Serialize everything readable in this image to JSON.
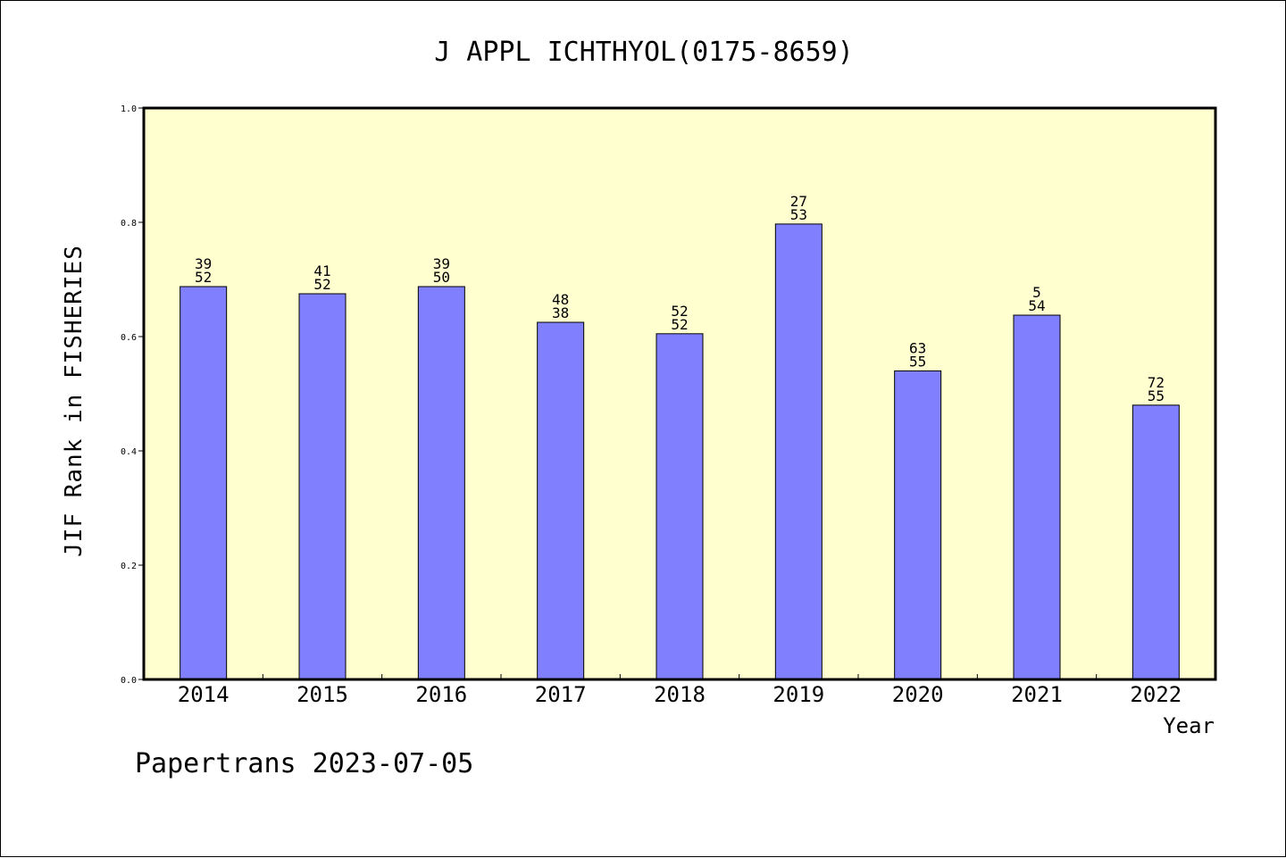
{
  "chart_data": {
    "type": "bar",
    "title": "J APPL ICHTHYOL(0175-8659)",
    "xlabel": "Year",
    "ylabel": "JIF Rank in FISHERIES",
    "ylim": [
      0,
      1.0
    ],
    "yticks": [
      "0.0",
      "0.2",
      "0.4",
      "0.6",
      "0.8",
      "1.0"
    ],
    "categories": [
      "2014",
      "2015",
      "2016",
      "2017",
      "2018",
      "2019",
      "2020",
      "2021",
      "2022"
    ],
    "values": [
      0.6875,
      0.675,
      0.6875,
      0.625,
      0.605,
      0.797,
      0.54,
      0.6375,
      0.48
    ],
    "labels": [
      [
        "39",
        "52"
      ],
      [
        "41",
        "52"
      ],
      [
        "39",
        "50"
      ],
      [
        "48",
        "38"
      ],
      [
        "52",
        "52"
      ],
      [
        "27",
        "53"
      ],
      [
        "63",
        "55"
      ],
      [
        "5",
        "54"
      ],
      [
        "72",
        "55"
      ]
    ],
    "grid": false,
    "colors": {
      "bar": "#8080ff",
      "plot_background": "#ffffd0"
    }
  },
  "footer": {
    "text": "Papertrans 2023-07-05"
  }
}
